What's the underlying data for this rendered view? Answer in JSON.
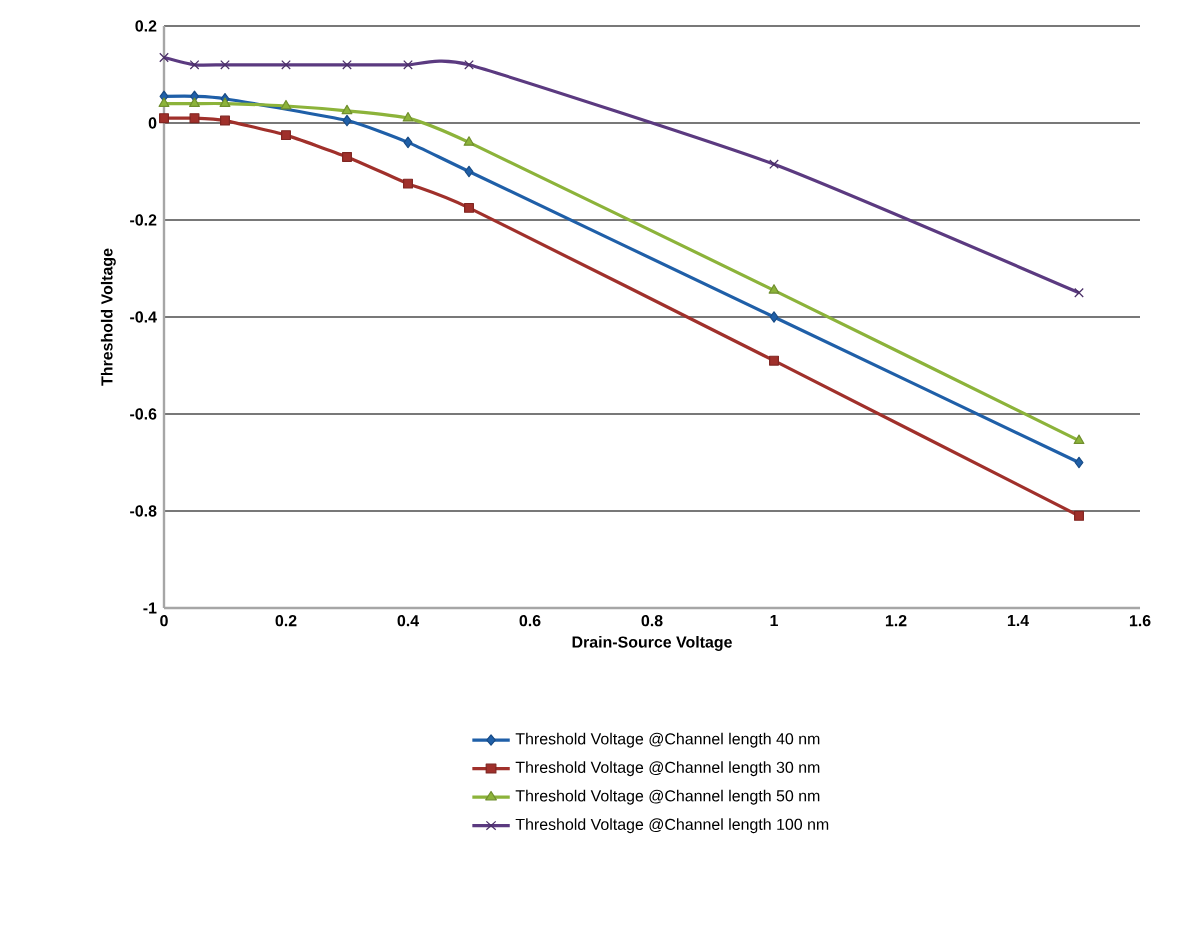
{
  "chart_data": {
    "type": "line",
    "xlabel": "Drain-Source Voltage",
    "ylabel": "Threshold Voltage",
    "x": [
      0,
      0.05,
      0.1,
      0.2,
      0.3,
      0.4,
      0.5,
      1,
      1.5
    ],
    "series": [
      {
        "name": "Threshold Voltage @Channel length 40 nm",
        "color": "#1f5fa8",
        "marker": "diamond",
        "values": [
          0.055,
          0.055,
          0.05,
          null,
          0.005,
          -0.04,
          -0.1,
          -0.4,
          -0.7
        ]
      },
      {
        "name": "Threshold Voltage @Channel length 30 nm",
        "color": "#a0302b",
        "marker": "square",
        "values": [
          0.01,
          0.01,
          0.005,
          -0.025,
          -0.07,
          -0.125,
          -0.175,
          -0.49,
          -0.81
        ]
      },
      {
        "name": "Threshold Voltage @Channel length 50 nm",
        "color": "#8cb33a",
        "marker": "triangle",
        "values": [
          0.04,
          0.04,
          0.04,
          0.035,
          0.025,
          0.01,
          -0.04,
          -0.345,
          -0.655
        ]
      },
      {
        "name": "Threshold Voltage @Channel length 100 nm",
        "color": "#5b3a80",
        "marker": "cross",
        "values": [
          0.135,
          0.12,
          0.12,
          0.12,
          0.12,
          0.12,
          0.12,
          -0.085,
          -0.35
        ]
      }
    ],
    "xlim": [
      0,
      1.6
    ],
    "xticks": [
      0,
      0.2,
      0.4,
      0.6,
      0.8,
      1,
      1.2,
      1.4,
      1.6
    ],
    "ylim": [
      -1,
      0.2
    ],
    "yticks": [
      -1,
      -0.8,
      -0.6,
      -0.4,
      -0.2,
      0,
      0.2
    ],
    "grid": "y",
    "legend": "bottom",
    "line_style": "solid"
  }
}
